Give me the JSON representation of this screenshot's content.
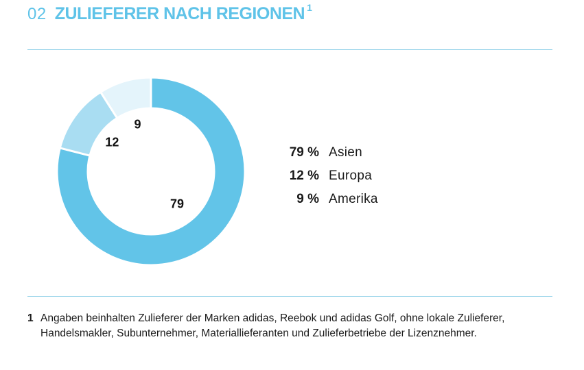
{
  "header": {
    "number": "02",
    "title": "ZULIEFERER NACH REGIONEN",
    "footnote_marker": "1"
  },
  "chart_data": {
    "type": "pie",
    "style": "donut",
    "categories": [
      "Asien",
      "Europa",
      "Amerika"
    ],
    "values": [
      79,
      12,
      9
    ],
    "slice_labels": [
      "79",
      "12",
      "9"
    ],
    "unit": "%",
    "legend_placement": "right",
    "colors": [
      "#62c4e8",
      "#a9ddf2",
      "#e4f4fb"
    ],
    "legend": [
      {
        "value": "79 %",
        "label": "Asien"
      },
      {
        "value": "12 %",
        "label": "Europa"
      },
      {
        "value": "9 %",
        "label": "Amerika"
      }
    ]
  },
  "footnote": {
    "marker": "1",
    "text": "Angaben beinhalten Zulieferer der Marken adidas, Reebok und adidas Golf, ohne lokale Zulieferer, Handelsmakler, Subunternehmer, Materiallieferanten und Zulieferbetriebe der Lizenznehmer."
  }
}
